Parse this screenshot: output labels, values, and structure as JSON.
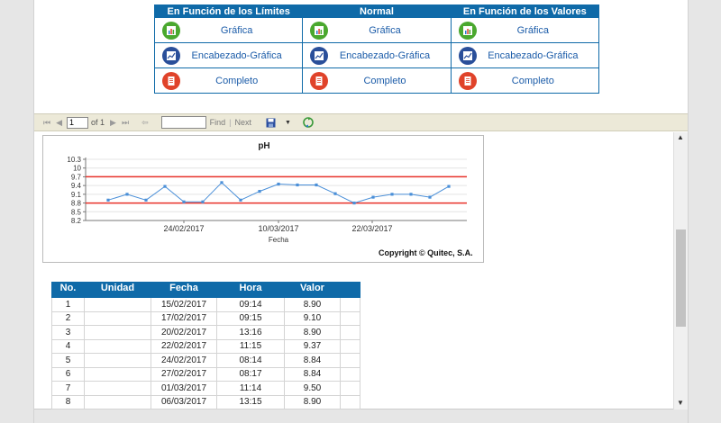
{
  "menu": {
    "headers": [
      "En Función de los Límites",
      "Normal",
      "En Función de los Valores"
    ],
    "rows": [
      {
        "label": "Gráfica",
        "icon": "chart-report-icon"
      },
      {
        "label": "Encabezado-Gráfica",
        "icon": "header-chart-icon"
      },
      {
        "label": "Completo",
        "icon": "full-report-icon"
      }
    ]
  },
  "toolbar": {
    "page_value": "1",
    "page_of": "of 1",
    "find_label": "Find",
    "separator": "|",
    "next_label": "Next"
  },
  "chart_data": {
    "type": "line",
    "title": "pH",
    "xlabel": "Fecha",
    "ylabel": "",
    "yticks": [
      "10.3",
      "10",
      "9.7",
      "9.4",
      "9.1",
      "8.8",
      "8.5",
      "8.2"
    ],
    "ylim": [
      8.2,
      10.3
    ],
    "xticks": [
      "24/02/2017",
      "10/03/2017",
      "22/03/2017"
    ],
    "limits": [
      9.7,
      8.8
    ],
    "limit_color": "#e8322a",
    "series_color": "#4a8fd8",
    "values": [
      8.9,
      9.1,
      8.9,
      9.37,
      8.84,
      8.84,
      9.5,
      8.9,
      9.2,
      9.45,
      9.42,
      9.42,
      9.12,
      8.8,
      9.0,
      9.1,
      9.1,
      9.0,
      9.37
    ],
    "grid": true
  },
  "copyright": "Copyright © Quitec, S.A.",
  "table": {
    "headers": [
      "No.",
      "Unidad",
      "Fecha",
      "Hora",
      "Valor"
    ],
    "rows": [
      {
        "no": "1",
        "unidad": "",
        "fecha": "15/02/2017",
        "hora": "09:14",
        "valor": "8.90"
      },
      {
        "no": "2",
        "unidad": "",
        "fecha": "17/02/2017",
        "hora": "09:15",
        "valor": "9.10"
      },
      {
        "no": "3",
        "unidad": "",
        "fecha": "20/02/2017",
        "hora": "13:16",
        "valor": "8.90"
      },
      {
        "no": "4",
        "unidad": "",
        "fecha": "22/02/2017",
        "hora": "11:15",
        "valor": "9.37"
      },
      {
        "no": "5",
        "unidad": "",
        "fecha": "24/02/2017",
        "hora": "08:14",
        "valor": "8.84"
      },
      {
        "no": "6",
        "unidad": "",
        "fecha": "27/02/2017",
        "hora": "08:17",
        "valor": "8.84"
      },
      {
        "no": "7",
        "unidad": "",
        "fecha": "01/03/2017",
        "hora": "11:14",
        "valor": "9.50"
      },
      {
        "no": "8",
        "unidad": "",
        "fecha": "06/03/2017",
        "hora": "13:15",
        "valor": "8.90"
      }
    ]
  }
}
